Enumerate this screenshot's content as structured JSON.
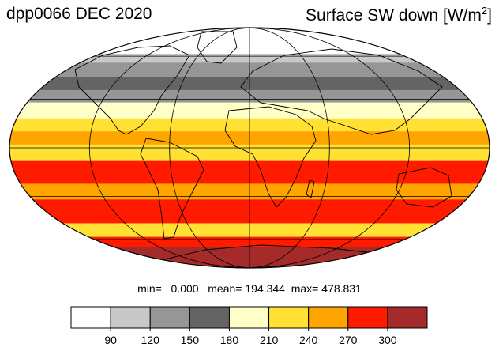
{
  "header": {
    "title_left": "dpp0066 DEC 2020",
    "title_right_main": "Surface SW down [W/m",
    "title_right_sup": "2",
    "title_right_end": "]"
  },
  "stats": {
    "min_label": "min=",
    "min_value": "0.000",
    "mean_label": "mean=",
    "mean_value": "194.344",
    "max_label": "max=",
    "max_value": "478.831"
  },
  "colors": {
    "ocean_outline": "#000000",
    "graticule": "#000000"
  },
  "colorbar": {
    "colors": [
      "#ffffff",
      "#c8c8c8",
      "#969696",
      "#646464",
      "#ffffc8",
      "#ffe033",
      "#ffa500",
      "#ff1a00",
      "#a52a2a"
    ],
    "ticks": [
      "90",
      "120",
      "150",
      "180",
      "210",
      "240",
      "270",
      "300"
    ]
  },
  "bands": [
    {
      "lat_top": 90,
      "lat_bottom": 62,
      "color": "#ffffff"
    },
    {
      "lat_top": 62,
      "lat_bottom": 55,
      "color": "#c8c8c8"
    },
    {
      "lat_top": 55,
      "lat_bottom": 45,
      "color": "#969696"
    },
    {
      "lat_top": 45,
      "lat_bottom": 36,
      "color": "#646464"
    },
    {
      "lat_top": 36,
      "lat_bottom": 28,
      "color": "#969696"
    },
    {
      "lat_top": 28,
      "lat_bottom": 18,
      "color": "#ffffc8"
    },
    {
      "lat_top": 18,
      "lat_bottom": 10,
      "color": "#ffe033"
    },
    {
      "lat_top": 10,
      "lat_bottom": 2,
      "color": "#ffa500"
    },
    {
      "lat_top": 2,
      "lat_bottom": -8,
      "color": "#ffe033"
    },
    {
      "lat_top": -8,
      "lat_bottom": -22,
      "color": "#ff1a00"
    },
    {
      "lat_top": -22,
      "lat_bottom": -32,
      "color": "#ffa500"
    },
    {
      "lat_top": -32,
      "lat_bottom": -48,
      "color": "#ff1a00"
    },
    {
      "lat_top": -48,
      "lat_bottom": -58,
      "color": "#ffe033"
    },
    {
      "lat_top": -58,
      "lat_bottom": -66,
      "color": "#ff1a00"
    },
    {
      "lat_top": -66,
      "lat_bottom": -90,
      "color": "#a52a2a"
    }
  ]
}
